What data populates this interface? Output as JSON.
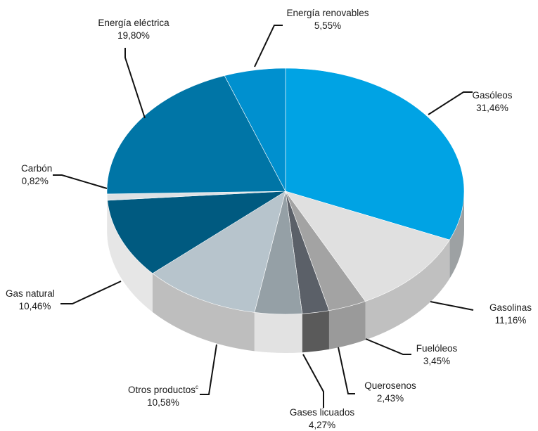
{
  "chart_data": {
    "type": "pie",
    "style": "3d",
    "categories": [
      "Gasóleos",
      "Gasolinas",
      "Fuelóleos",
      "Querosenos",
      "Gases licuados",
      "Otros productos",
      "Gas natural",
      "Carbón",
      "Energía eléctrica",
      "Energía renovables"
    ],
    "values": [
      31.46,
      11.16,
      3.45,
      2.43,
      4.27,
      10.58,
      10.46,
      0.82,
      19.8,
      5.55
    ],
    "labels": [
      {
        "name": "Gasóleos",
        "value": "31,46%",
        "sup": ""
      },
      {
        "name": "Gasolinas",
        "value": "11,16%",
        "sup": ""
      },
      {
        "name": "Fuelóleos",
        "value": "3,45%",
        "sup": ""
      },
      {
        "name": "Querosenos",
        "value": "2,43%",
        "sup": ""
      },
      {
        "name": "Gases licuados",
        "value": "4,27%",
        "sup": ""
      },
      {
        "name": "Otros productos",
        "value": "10,58%",
        "sup": "c"
      },
      {
        "name": "Gas natural",
        "value": "10,46%",
        "sup": ""
      },
      {
        "name": "Carbón",
        "value": "0,82%",
        "sup": ""
      },
      {
        "name": "Energía eléctrica",
        "value": "19,80%",
        "sup": ""
      },
      {
        "name": "Energía renovables",
        "value": "5,55%",
        "sup": ""
      }
    ],
    "colors": [
      "#00a3e4",
      "#e0e0e0",
      "#a3a3a3",
      "#5b6068",
      "#95a0a6",
      "#b7c4cc",
      "#005a80",
      "#dde1e4",
      "#0075a6",
      "#0090cf"
    ],
    "side_colors": [
      "#9da1a3",
      "#c0c0c0",
      "#9a9a9a",
      "#5a5a5a",
      "#e2e2e2",
      "#bebebe",
      "#e6e6e6",
      "#e6e6e6",
      "#e6e6e6",
      "#e6e6e6"
    ],
    "legend": "none",
    "start": "top",
    "direction": "clockwise"
  }
}
